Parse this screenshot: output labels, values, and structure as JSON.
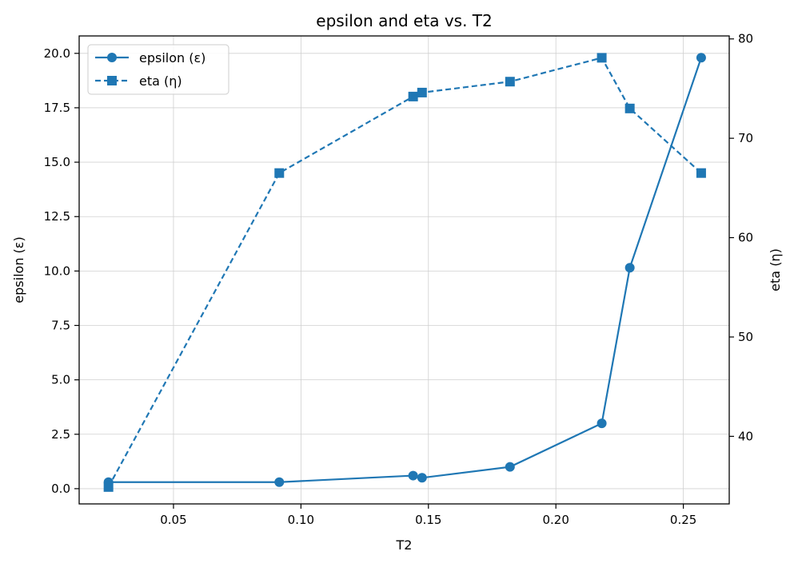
{
  "chart_data": {
    "type": "line",
    "title": "epsilon and eta vs. T2",
    "xlabel": "T2",
    "ylabel_left": "epsilon (ε)",
    "ylabel_right": "eta (η)",
    "xlim": [
      0.013,
      0.268
    ],
    "ylim_left": [
      -0.7,
      20.8
    ],
    "ylim_right": [
      33.2,
      80.3
    ],
    "x_ticks": [
      0.05,
      0.1,
      0.15,
      0.2,
      0.25
    ],
    "x_tick_labels": [
      "0.05",
      "0.10",
      "0.15",
      "0.20",
      "0.25"
    ],
    "y_left_ticks": [
      0.0,
      2.5,
      5.0,
      7.5,
      10.0,
      12.5,
      15.0,
      17.5,
      20.0
    ],
    "y_left_tick_labels": [
      "0.0",
      "2.5",
      "5.0",
      "7.5",
      "10.0",
      "12.5",
      "15.0",
      "17.5",
      "20.0"
    ],
    "y_right_ticks": [
      40,
      50,
      60,
      70,
      80
    ],
    "y_right_tick_labels": [
      "40",
      "50",
      "60",
      "70",
      "80"
    ],
    "grid": true,
    "legend_position": "top-left",
    "color": "#1f77b4",
    "series": [
      {
        "name": "epsilon (ε)",
        "axis": "left",
        "line_style": "solid",
        "marker": "circle",
        "x": [
          0.0245,
          0.0915,
          0.144,
          0.1475,
          0.182,
          0.218,
          0.229,
          0.257
        ],
        "values": [
          0.3,
          0.3,
          0.6,
          0.5,
          1.0,
          3.0,
          10.15,
          19.8
        ]
      },
      {
        "name": "eta (η)",
        "axis": "right",
        "line_style": "dashed",
        "marker": "square",
        "x": [
          0.0245,
          0.0915,
          0.144,
          0.1475,
          0.182,
          0.218,
          0.229,
          0.257
        ],
        "values": [
          34.9,
          66.5,
          74.2,
          74.6,
          75.7,
          78.1,
          73.0,
          66.5
        ]
      }
    ]
  }
}
